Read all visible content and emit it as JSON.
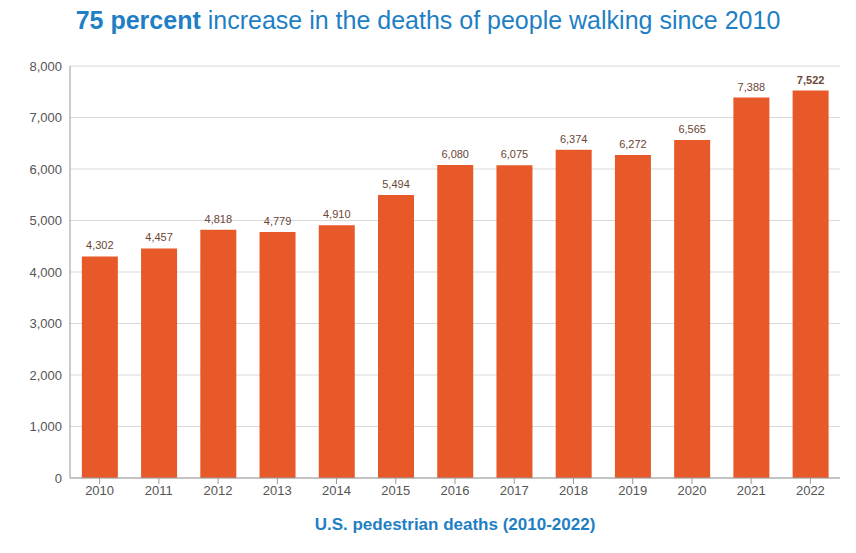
{
  "chart_data": {
    "type": "bar",
    "title": "75 percent increase in the deaths of people walking since 2010",
    "xlabel": "U.S. pedestrian deaths (2010-2022)",
    "categories": [
      "2010",
      "2011",
      "2012",
      "2013",
      "2014",
      "2015",
      "2016",
      "2017",
      "2018",
      "2019",
      "2020",
      "2021",
      "2022"
    ],
    "values": [
      4302,
      4457,
      4818,
      4779,
      4910,
      5494,
      6080,
      6075,
      6374,
      6272,
      6565,
      7388,
      7522
    ],
    "value_labels": [
      "4,302",
      "4,457",
      "4,818",
      "4,779",
      "4,910",
      "5,494",
      "6,080",
      "6,075",
      "6,374",
      "6,272",
      "6,565",
      "7,388",
      "7,522"
    ],
    "color": "#e8592a",
    "ylim": [
      0,
      8000
    ],
    "yticks": [
      0,
      {
        "value": 1000,
        "label": "1,000"
      },
      {
        "value": 2000,
        "label": "2,000"
      },
      {
        "value": 3000,
        "label": "3,000"
      },
      {
        "value": 4000,
        "label": "4,000"
      },
      {
        "value": 5000,
        "label": "5,000"
      },
      {
        "value": 6000,
        "label": "6,000"
      },
      {
        "value": 7000,
        "label": "7,000"
      },
      {
        "value": 8000,
        "label": "8,000"
      }
    ],
    "grid": true,
    "data_labels": true
  }
}
